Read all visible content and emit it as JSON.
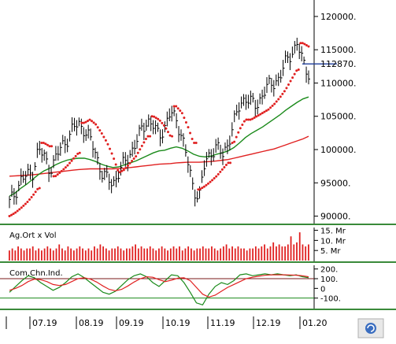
{
  "chart_data": [
    {
      "type": "line",
      "subtype": "ohlc-bars-with-moving-averages-and-parabolic-sar",
      "y_axis": {
        "range": [
          89000,
          122000
        ],
        "ticks": [
          120000,
          115000,
          110000,
          105000,
          100000,
          95000,
          90000
        ],
        "tick_labels": [
          "120000.",
          "115000.",
          "110000.",
          "105000.",
          "100000.",
          "95000.",
          "90000."
        ],
        "last_price_label": "112870.",
        "last_price": 112870
      },
      "x_axis": {
        "labels": [
          "07.19",
          "08.19",
          "09.19",
          "10.19",
          "11.19",
          "12.19",
          "01.20"
        ]
      },
      "series": [
        {
          "kind": "price",
          "values": [
            92000,
            93500,
            95500,
            96000,
            96500,
            100000,
            99000,
            97000,
            98500,
            100500,
            101500,
            103000,
            104000,
            103000,
            101500,
            99500,
            96500,
            95500,
            95000,
            96500,
            98000,
            99500,
            101000,
            103000,
            104500,
            103500,
            102000,
            103500,
            105500,
            104500,
            102000,
            98000,
            94000,
            93000,
            98000,
            99500,
            100500,
            99000,
            101000,
            104000,
            106500,
            108000,
            107000,
            106500,
            108500,
            109500,
            110000,
            111000,
            113000,
            114500,
            116000,
            113000,
            111500
          ]
        },
        {
          "kind": "moving-average-fast",
          "color": "#1a8a1a",
          "values": [
            93000,
            93500,
            94200,
            94800,
            95500,
            96200,
            96800,
            97200,
            97700,
            98100,
            98400,
            98600,
            98700,
            98700,
            98500,
            98200,
            97800,
            97500,
            97300,
            97400,
            97700,
            98000,
            98300,
            98700,
            99100,
            99500,
            99800,
            99900,
            100200,
            100400,
            100200,
            99800,
            99300,
            99000,
            98900,
            99000,
            99300,
            99500,
            99800,
            100300,
            101000,
            101800,
            102400,
            102900,
            103400,
            104000,
            104600,
            105200,
            105900,
            106500,
            107100,
            107600,
            107900
          ]
        },
        {
          "kind": "moving-average-slow",
          "color": "#e02020",
          "values": [
            96000,
            96050,
            96100,
            96150,
            96200,
            96300,
            96400,
            96500,
            96600,
            96700,
            96800,
            96900,
            97000,
            97050,
            97100,
            97100,
            97100,
            97100,
            97100,
            97150,
            97200,
            97300,
            97400,
            97500,
            97600,
            97700,
            97800,
            97850,
            97900,
            98000,
            98050,
            98100,
            98100,
            98100,
            98150,
            98200,
            98300,
            98400,
            98500,
            98700,
            98900,
            99100,
            99300,
            99500,
            99700,
            99900,
            100100,
            100400,
            100700,
            101000,
            101300,
            101600,
            102000
          ]
        },
        {
          "kind": "parabolic-sar",
          "color": "#e02020",
          "values": [
            90000,
            90500,
            91200,
            92000,
            93000,
            94200,
            101000,
            100500,
            96000,
            96700,
            97500,
            98500,
            99500,
            104000,
            104500,
            103800,
            102500,
            101000,
            99000,
            96500,
            97000,
            98000,
            99000,
            100500,
            102000,
            105000,
            104500,
            103500,
            102000,
            106500,
            105500,
            103500,
            101000,
            94000,
            94500,
            95200,
            96000,
            97000,
            98000,
            101000,
            103000,
            104500,
            104500,
            105000,
            105500,
            106000,
            106800,
            107800,
            109000,
            110500,
            112000,
            116000,
            115500
          ]
        }
      ]
    },
    {
      "type": "bar",
      "title": "Ag.Ort x Vol",
      "y_axis": {
        "ticks": [
          15,
          10,
          5
        ],
        "tick_labels": [
          "15. Mr",
          "10. Mr",
          "5. Mr"
        ]
      },
      "color": "#e02020",
      "values": [
        5,
        6,
        5,
        7,
        6,
        5,
        6,
        6,
        7,
        5,
        6,
        5,
        6,
        7,
        6,
        5,
        6,
        8,
        6,
        5,
        7,
        6,
        5,
        6,
        7,
        6,
        5,
        6,
        5,
        7,
        6,
        8,
        7,
        6,
        5,
        6,
        6,
        7,
        6,
        5,
        6,
        6,
        7,
        8,
        6,
        7,
        6,
        6,
        7,
        6,
        5,
        6,
        7,
        6,
        5,
        6,
        7,
        6,
        7,
        5,
        6,
        7,
        6,
        5,
        6,
        6,
        7,
        6,
        6,
        7,
        6,
        5,
        6,
        7,
        8,
        6,
        7,
        6,
        7,
        6,
        6,
        5,
        6,
        6,
        7,
        6,
        7,
        8,
        6,
        7,
        9,
        7,
        8,
        7,
        7,
        8,
        12,
        8,
        9,
        14,
        8,
        7,
        8
      ]
    },
    {
      "type": "line",
      "title": "Com.Chn.Ind.",
      "y_axis": {
        "ticks": [
          200,
          100,
          0,
          -100
        ],
        "tick_labels": [
          "200.",
          "100.",
          "0",
          "-100."
        ],
        "reference_lines": [
          100,
          -100
        ]
      },
      "series": [
        {
          "color": "#1a8a1a",
          "values": [
            -40,
            20,
            80,
            130,
            110,
            60,
            20,
            -20,
            10,
            60,
            120,
            150,
            110,
            60,
            10,
            -40,
            -60,
            -30,
            30,
            90,
            130,
            150,
            120,
            60,
            20,
            80,
            140,
            130,
            60,
            -40,
            -150,
            -170,
            -60,
            20,
            60,
            40,
            80,
            140,
            150,
            130,
            140,
            150,
            140,
            150,
            140,
            130,
            140,
            120,
            110
          ]
        },
        {
          "color": "#e02020",
          "values": [
            -20,
            0,
            30,
            70,
            95,
            90,
            70,
            40,
            30,
            40,
            70,
            100,
            110,
            95,
            65,
            25,
            -10,
            -25,
            -10,
            25,
            65,
            100,
            120,
            115,
            90,
            70,
            85,
            105,
            110,
            80,
            10,
            -60,
            -90,
            -70,
            -30,
            10,
            40,
            70,
            100,
            115,
            125,
            135,
            140,
            140,
            140,
            138,
            136,
            130,
            120
          ]
        }
      ]
    }
  ]
}
